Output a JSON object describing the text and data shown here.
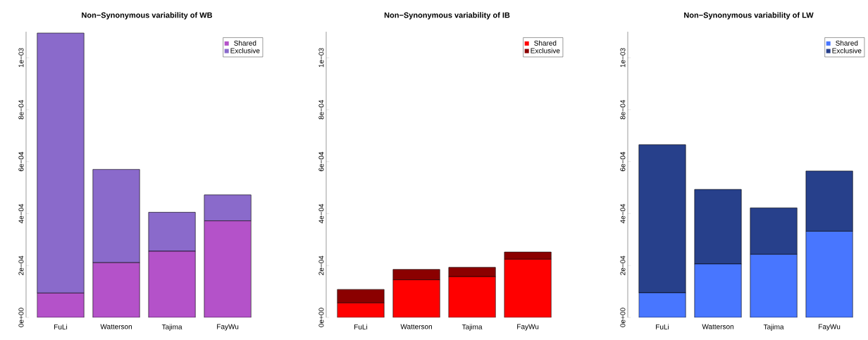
{
  "chart_data": [
    {
      "type": "bar",
      "title": "Non−Synonymous variability of WB",
      "categories": [
        "FuLi",
        "Watterson",
        "Tajima",
        "FayWu"
      ],
      "stacked": true,
      "legend": "top right",
      "ylim": [
        0,
        0.0011
      ],
      "yticks": [
        {
          "value": 0,
          "label": "0e+00"
        },
        {
          "value": 0.0002,
          "label": "2e−04"
        },
        {
          "value": 0.0004,
          "label": "4e−04"
        },
        {
          "value": 0.0006,
          "label": "6e−04"
        },
        {
          "value": 0.0008,
          "label": "8e−04"
        },
        {
          "value": 0.001,
          "label": "1e−03"
        }
      ],
      "series": [
        {
          "name": "Shared",
          "color": "#b452c9",
          "values": [
            9.4e-05,
            0.000211,
            0.000255,
            0.000372
          ]
        },
        {
          "name": "Exclusive",
          "color": "#8a6acb",
          "values": [
            0.001001,
            0.000359,
            0.00015,
            0.0001
          ]
        }
      ]
    },
    {
      "type": "bar",
      "title": "Non−Synonymous variability of IB",
      "categories": [
        "FuLi",
        "Watterson",
        "Tajima",
        "FayWu"
      ],
      "stacked": true,
      "legend": "top right",
      "ylim": [
        0,
        0.0011
      ],
      "yticks": [
        {
          "value": 0,
          "label": "0e+00"
        },
        {
          "value": 0.0002,
          "label": "2e−04"
        },
        {
          "value": 0.0004,
          "label": "4e−04"
        },
        {
          "value": 0.0006,
          "label": "6e−04"
        },
        {
          "value": 0.0008,
          "label": "8e−04"
        },
        {
          "value": 0.001,
          "label": "1e−03"
        }
      ],
      "series": [
        {
          "name": "Shared",
          "color": "#ff0000",
          "values": [
            5.6e-05,
            0.000145,
            0.000157,
            0.000224
          ]
        },
        {
          "name": "Exclusive",
          "color": "#8b0000",
          "values": [
            5.2e-05,
            4e-05,
            3.6e-05,
            2.8e-05
          ]
        }
      ]
    },
    {
      "type": "bar",
      "title": "Non−Synonymous variability of LW",
      "categories": [
        "FuLi",
        "Watterson",
        "Tajima",
        "FayWu"
      ],
      "stacked": true,
      "legend": "top right",
      "ylim": [
        0,
        0.0011
      ],
      "yticks": [
        {
          "value": 0,
          "label": "0e+00"
        },
        {
          "value": 0.0002,
          "label": "2e−04"
        },
        {
          "value": 0.0004,
          "label": "4e−04"
        },
        {
          "value": 0.0006,
          "label": "6e−04"
        },
        {
          "value": 0.0008,
          "label": "8e−04"
        },
        {
          "value": 0.001,
          "label": "1e−03"
        }
      ],
      "series": [
        {
          "name": "Shared",
          "color": "#4876ff",
          "values": [
            9.5e-05,
            0.000206,
            0.000243,
            0.000332
          ]
        },
        {
          "name": "Exclusive",
          "color": "#27408b",
          "values": [
            0.00057,
            0.000287,
            0.000179,
            0.000232
          ]
        }
      ]
    }
  ]
}
